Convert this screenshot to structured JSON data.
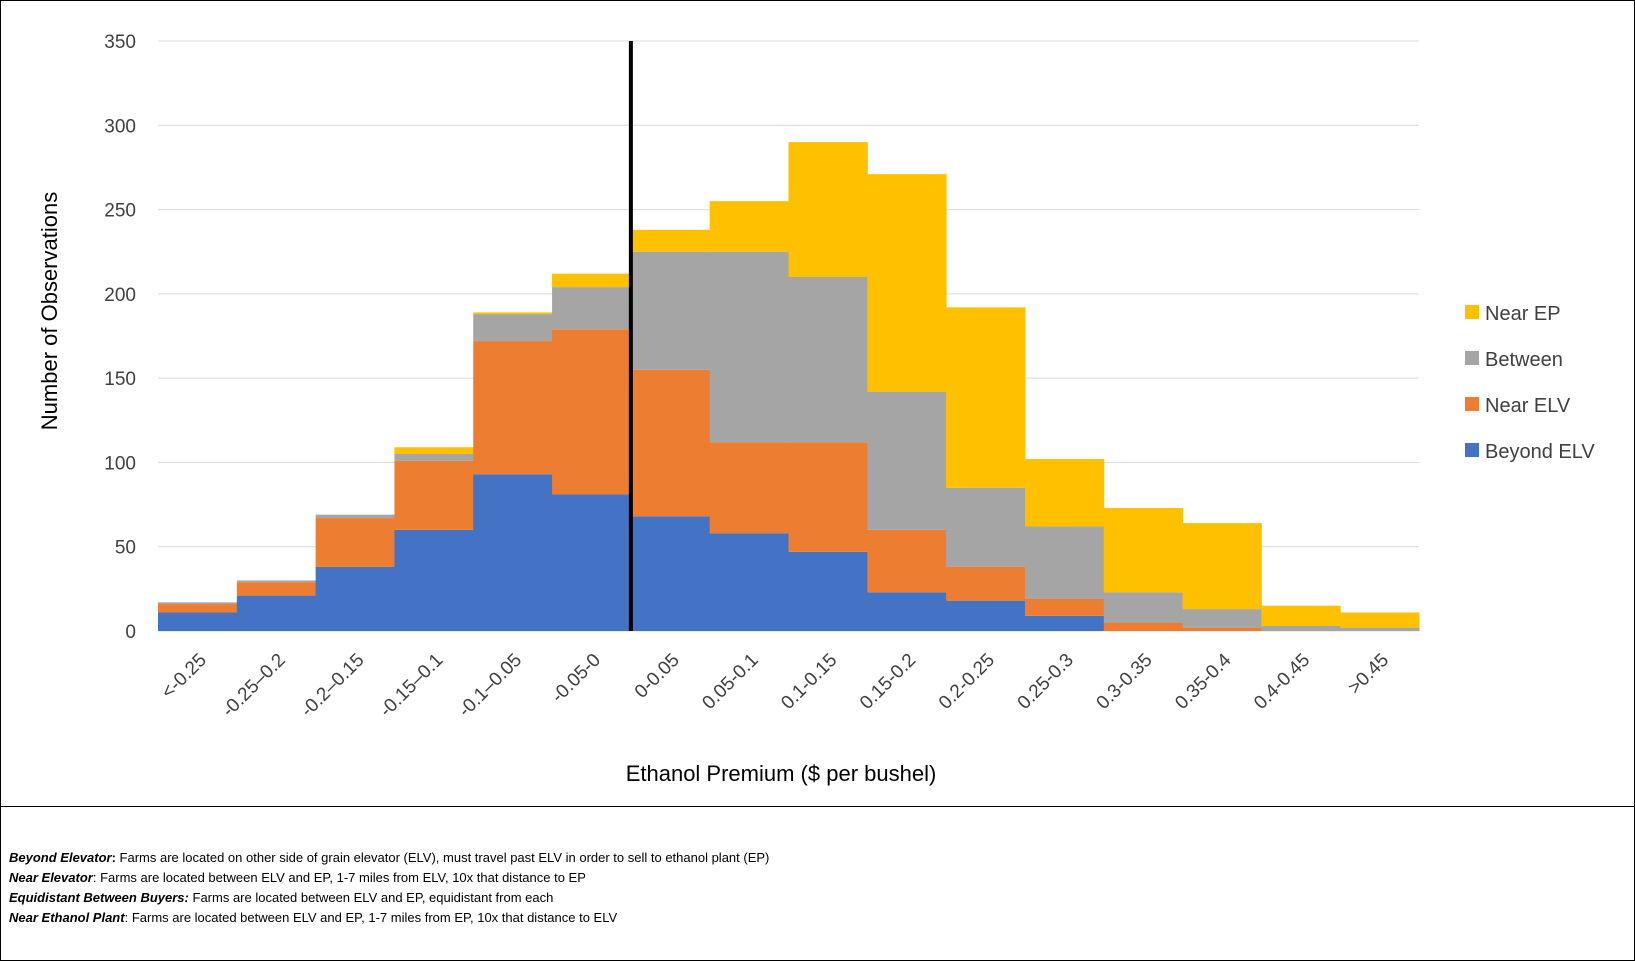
{
  "chart_data": {
    "type": "bar",
    "stacked": true,
    "xlabel": "Ethanol Premium ($ per bushel)",
    "ylabel": "Number of Observations",
    "ylim": [
      0,
      350
    ],
    "yticks": [
      0,
      50,
      100,
      150,
      200,
      250,
      300,
      350
    ],
    "grid": true,
    "legend_position": "right",
    "reference_line": {
      "between": [
        "-0.05-0",
        "0-0.05"
      ],
      "color": "#000000"
    },
    "categories": [
      "<-0.25",
      "-0.25–0.2",
      "-0.2–0.15",
      "-0.15–0.1",
      "-0.1–0.05",
      "-0.05-0",
      "0-0.05",
      "0.05-0.1",
      "0.1-0.15",
      "0.15-0.2",
      "0.2-0.25",
      "0.25-0.3",
      "0.3-0.35",
      "0.35-0.4",
      "0.4-0.45",
      ">0.45"
    ],
    "series": [
      {
        "name": "Beyond ELV",
        "color": "#4472C4",
        "values": [
          11,
          21,
          38,
          60,
          93,
          81,
          68,
          58,
          47,
          23,
          18,
          9,
          0,
          0,
          0,
          0
        ]
      },
      {
        "name": "Near ELV",
        "color": "#ED7D31",
        "values": [
          5,
          8,
          29,
          41,
          79,
          98,
          87,
          54,
          65,
          37,
          20,
          10,
          5,
          2,
          0,
          0
        ]
      },
      {
        "name": "Between",
        "color": "#A5A5A5",
        "values": [
          1,
          1,
          2,
          4,
          16,
          25,
          70,
          113,
          98,
          82,
          47,
          43,
          18,
          11,
          3,
          2
        ]
      },
      {
        "name": "Near EP",
        "color": "#FFC000",
        "values": [
          0,
          0,
          0,
          4,
          1,
          8,
          13,
          30,
          80,
          129,
          107,
          40,
          50,
          51,
          12,
          9
        ]
      }
    ]
  },
  "notes": [
    {
      "term": "Beyond Elevator",
      "sep": ": ",
      "text": "Farms are located on other side of grain elevator (ELV), must travel past ELV in order to sell to ethanol plant (EP)"
    },
    {
      "term": "Near Elevator",
      "sep": ": ",
      "text": "Farms are located between ELV and EP, 1-7 miles from ELV, 10x that distance to EP"
    },
    {
      "term": "Equidistant Between Buyers",
      "sep": ": ",
      "text": "Farms are located between ELV and EP, equidistant from each"
    },
    {
      "term": "Near Ethanol Plant",
      "sep": ": ",
      "text": "Farms are located between ELV and EP, 1-7 miles from EP, 10x that distance to ELV"
    }
  ]
}
